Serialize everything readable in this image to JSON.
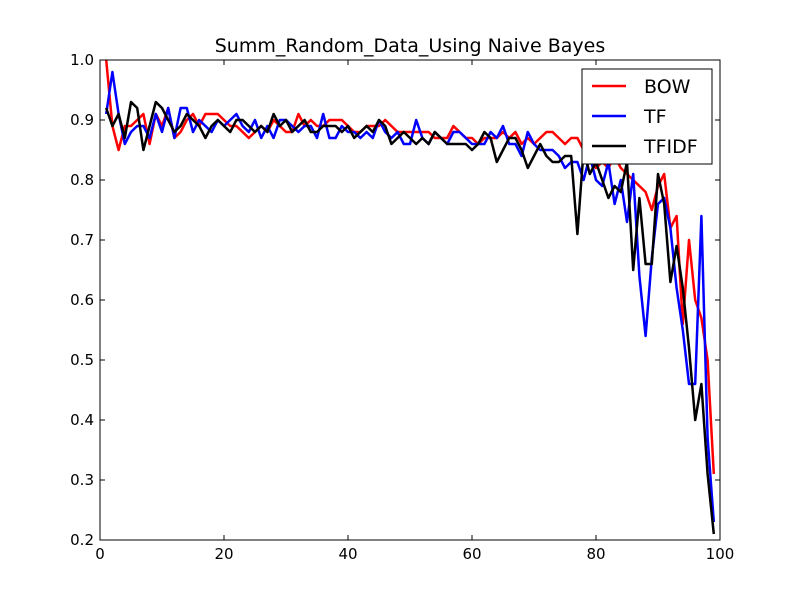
{
  "chart_data": {
    "type": "line",
    "title": "Summ_Random_Data_Using Naive Bayes",
    "xlabel": "",
    "ylabel": "",
    "xlim": [
      0,
      100
    ],
    "ylim": [
      0.2,
      1.0
    ],
    "xticks": [
      "0",
      "20",
      "40",
      "60",
      "80",
      "100"
    ],
    "yticks": [
      "0.2",
      "0.3",
      "0.4",
      "0.5",
      "0.6",
      "0.7",
      "0.8",
      "0.9",
      "1.0"
    ],
    "grid": false,
    "legend_position": "top-right",
    "x": [
      1,
      2,
      3,
      4,
      5,
      6,
      7,
      8,
      9,
      10,
      11,
      12,
      13,
      14,
      15,
      16,
      17,
      18,
      19,
      20,
      21,
      22,
      23,
      24,
      25,
      26,
      27,
      28,
      29,
      30,
      31,
      32,
      33,
      34,
      35,
      36,
      37,
      38,
      39,
      40,
      41,
      42,
      43,
      44,
      45,
      46,
      47,
      48,
      49,
      50,
      51,
      52,
      53,
      54,
      55,
      56,
      57,
      58,
      59,
      60,
      61,
      62,
      63,
      64,
      65,
      66,
      67,
      68,
      69,
      70,
      71,
      72,
      73,
      74,
      75,
      76,
      77,
      78,
      79,
      80,
      81,
      82,
      83,
      84,
      85,
      86,
      87,
      88,
      89,
      90,
      91,
      92,
      93,
      94,
      95,
      96,
      97,
      98,
      99
    ],
    "series": [
      {
        "name": "BOW",
        "color": "#ff0000",
        "values": [
          1.0,
          0.89,
          0.85,
          0.89,
          0.89,
          0.9,
          0.91,
          0.86,
          0.91,
          0.89,
          0.92,
          0.87,
          0.88,
          0.9,
          0.91,
          0.89,
          0.91,
          0.91,
          0.91,
          0.9,
          0.89,
          0.89,
          0.88,
          0.87,
          0.88,
          0.89,
          0.88,
          0.9,
          0.89,
          0.88,
          0.88,
          0.91,
          0.89,
          0.9,
          0.89,
          0.89,
          0.9,
          0.9,
          0.9,
          0.89,
          0.88,
          0.88,
          0.89,
          0.89,
          0.89,
          0.9,
          0.89,
          0.88,
          0.88,
          0.88,
          0.88,
          0.88,
          0.88,
          0.87,
          0.87,
          0.87,
          0.89,
          0.88,
          0.87,
          0.87,
          0.86,
          0.87,
          0.87,
          0.87,
          0.88,
          0.87,
          0.88,
          0.86,
          0.87,
          0.86,
          0.87,
          0.88,
          0.88,
          0.87,
          0.86,
          0.87,
          0.87,
          0.85,
          0.84,
          0.82,
          0.83,
          0.82,
          0.84,
          0.82,
          0.81,
          0.8,
          0.79,
          0.78,
          0.75,
          0.79,
          0.81,
          0.72,
          0.74,
          0.56,
          0.7,
          0.6,
          0.57,
          0.5,
          0.31
        ]
      },
      {
        "name": "TF",
        "color": "#0000ff",
        "values": [
          0.91,
          0.98,
          0.91,
          0.86,
          0.88,
          0.89,
          0.89,
          0.87,
          0.91,
          0.88,
          0.92,
          0.87,
          0.92,
          0.92,
          0.88,
          0.9,
          0.89,
          0.88,
          0.9,
          0.89,
          0.9,
          0.91,
          0.89,
          0.88,
          0.9,
          0.87,
          0.89,
          0.87,
          0.9,
          0.9,
          0.89,
          0.88,
          0.89,
          0.89,
          0.87,
          0.91,
          0.87,
          0.87,
          0.89,
          0.88,
          0.88,
          0.87,
          0.88,
          0.87,
          0.9,
          0.88,
          0.87,
          0.88,
          0.86,
          0.86,
          0.9,
          0.87,
          0.86,
          0.88,
          0.87,
          0.86,
          0.88,
          0.88,
          0.87,
          0.86,
          0.86,
          0.86,
          0.88,
          0.87,
          0.89,
          0.86,
          0.86,
          0.84,
          0.88,
          0.86,
          0.85,
          0.85,
          0.85,
          0.84,
          0.82,
          0.83,
          0.83,
          0.8,
          0.84,
          0.8,
          0.79,
          0.83,
          0.76,
          0.8,
          0.73,
          0.81,
          0.64,
          0.54,
          0.67,
          0.76,
          0.77,
          0.72,
          0.62,
          0.55,
          0.46,
          0.46,
          0.74,
          0.37,
          0.23
        ]
      },
      {
        "name": "TFIDF",
        "color": "#000000",
        "values": [
          0.92,
          0.89,
          0.91,
          0.87,
          0.93,
          0.92,
          0.85,
          0.89,
          0.93,
          0.92,
          0.9,
          0.88,
          0.89,
          0.91,
          0.9,
          0.89,
          0.87,
          0.89,
          0.9,
          0.89,
          0.88,
          0.9,
          0.9,
          0.89,
          0.88,
          0.89,
          0.88,
          0.91,
          0.89,
          0.9,
          0.88,
          0.89,
          0.9,
          0.88,
          0.88,
          0.89,
          0.89,
          0.89,
          0.88,
          0.89,
          0.87,
          0.88,
          0.89,
          0.88,
          0.9,
          0.89,
          0.86,
          0.87,
          0.88,
          0.87,
          0.86,
          0.87,
          0.86,
          0.88,
          0.87,
          0.86,
          0.86,
          0.86,
          0.86,
          0.85,
          0.86,
          0.88,
          0.87,
          0.83,
          0.85,
          0.87,
          0.87,
          0.85,
          0.82,
          0.84,
          0.86,
          0.84,
          0.83,
          0.83,
          0.84,
          0.84,
          0.71,
          0.85,
          0.81,
          0.83,
          0.8,
          0.77,
          0.79,
          0.78,
          0.83,
          0.65,
          0.77,
          0.66,
          0.66,
          0.81,
          0.76,
          0.63,
          0.69,
          0.62,
          0.52,
          0.4,
          0.46,
          0.31,
          0.21
        ]
      }
    ]
  }
}
